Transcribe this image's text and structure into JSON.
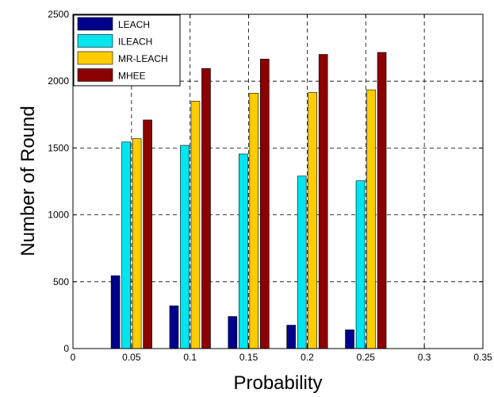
{
  "chart_data": {
    "type": "bar",
    "title": "",
    "xlabel": "Probability",
    "ylabel": "Number of Round",
    "x": [
      0.05,
      0.1,
      0.15,
      0.2,
      0.25
    ],
    "xlim": [
      0,
      0.35
    ],
    "ylim": [
      0,
      2500
    ],
    "xticks": [
      "0",
      "0.05",
      "0.1",
      "0.15",
      "0.2",
      "0.25",
      "0.3",
      "0.35"
    ],
    "yticks": [
      "0",
      "500",
      "1000",
      "1500",
      "2000",
      "2500"
    ],
    "grid": true,
    "legend_position": "top-left",
    "series": [
      {
        "name": "LEACH",
        "color": "#00008b",
        "values": [
          545,
          320,
          240,
          175,
          140
        ]
      },
      {
        "name": "ILEACH",
        "color": "#00e5ee",
        "values": [
          1545,
          1520,
          1455,
          1290,
          1255
        ]
      },
      {
        "name": "MR-LEACH",
        "color": "#ffcc00",
        "values": [
          1570,
          1850,
          1910,
          1915,
          1935
        ]
      },
      {
        "name": "MHEE",
        "color": "#8b0000",
        "values": [
          1710,
          2095,
          2165,
          2200,
          2215
        ]
      }
    ]
  }
}
